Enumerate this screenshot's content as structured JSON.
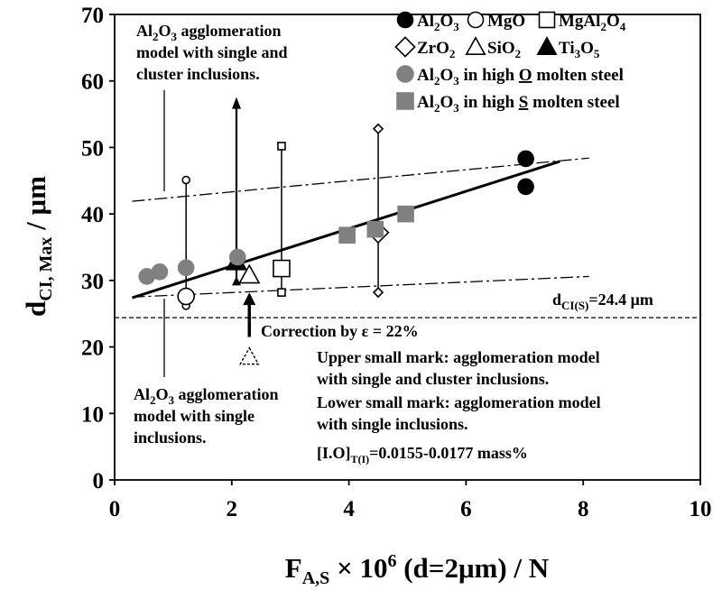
{
  "chart_data": {
    "type": "scatter",
    "xlim": [
      0,
      10
    ],
    "ylim": [
      0,
      70
    ],
    "xticks": [
      0,
      2,
      4,
      6,
      8,
      10
    ],
    "yticks": [
      0,
      10,
      20,
      30,
      40,
      50,
      60,
      70
    ],
    "xlabel": {
      "main": "F",
      "sub": "A,S",
      "mid": " × 10",
      "sup": "6",
      "end": " (d=2μm) / N"
    },
    "ylabel": {
      "main": "d",
      "sub": "CI, Max",
      "end": " / μm"
    },
    "grid": false,
    "legend_position": "top-right",
    "legend": [
      {
        "marker": "circle-filled",
        "parts": [
          [
            "Al",
            ""
          ],
          [
            "2",
            "sub"
          ],
          [
            "O",
            ""
          ],
          [
            "3",
            "sub"
          ]
        ]
      },
      {
        "marker": "circle-open",
        "parts": [
          [
            "MgO",
            ""
          ]
        ]
      },
      {
        "marker": "square-open",
        "parts": [
          [
            "MgAl",
            ""
          ],
          [
            "2",
            "sub"
          ],
          [
            "O",
            ""
          ],
          [
            "4",
            "sub"
          ]
        ]
      },
      {
        "marker": "diamond-open",
        "parts": [
          [
            "ZrO",
            ""
          ],
          [
            "2",
            "sub"
          ]
        ]
      },
      {
        "marker": "triangle-open",
        "parts": [
          [
            "SiO",
            ""
          ],
          [
            "2",
            "sub"
          ]
        ]
      },
      {
        "marker": "triangle-filled",
        "parts": [
          [
            "Ti",
            ""
          ],
          [
            "3",
            "sub"
          ],
          [
            "O",
            ""
          ],
          [
            "5",
            "sub"
          ]
        ]
      },
      {
        "marker": "circle-gray",
        "parts": [
          [
            "Al",
            ""
          ],
          [
            "2",
            "sub"
          ],
          [
            "O",
            ""
          ],
          [
            "3",
            "sub"
          ],
          [
            "  in high ",
            ""
          ],
          [
            "O",
            "u"
          ],
          [
            " molten steel",
            ""
          ]
        ]
      },
      {
        "marker": "square-gray",
        "parts": [
          [
            "Al",
            ""
          ],
          [
            "2",
            "sub"
          ],
          [
            "O",
            ""
          ],
          [
            "3",
            "sub"
          ],
          [
            "  in high ",
            ""
          ],
          [
            "S",
            "u"
          ],
          [
            " molten steel",
            ""
          ]
        ]
      }
    ],
    "series": [
      {
        "name": "Al2O3",
        "marker": "circle-filled",
        "points": [
          [
            7.02,
            48.3
          ],
          [
            7.02,
            44.1
          ]
        ]
      },
      {
        "name": "MgO",
        "marker": "circle-open",
        "points": [
          [
            1.22,
            27.6
          ]
        ],
        "range": [
          26.2,
          45.1
        ]
      },
      {
        "name": "MgAl2O4",
        "marker": "square-open",
        "points": [
          [
            2.85,
            31.8
          ]
        ],
        "range": [
          28.2,
          50.2
        ]
      },
      {
        "name": "ZrO2",
        "marker": "diamond-open",
        "points": [
          [
            4.5,
            37.2
          ]
        ],
        "range": [
          28.2,
          52.8
        ]
      },
      {
        "name": "SiO2",
        "marker": "triangle-open",
        "points": [
          [
            2.3,
            30.8
          ]
        ],
        "corrected_from": 18.5
      },
      {
        "name": "Ti3O5",
        "marker": "triangle-filled",
        "points": [
          [
            2.08,
            32.8
          ]
        ],
        "range": [
          29.8,
          57.3
        ]
      },
      {
        "name": "Al2O3 in high O molten steel",
        "marker": "circle-gray",
        "points": [
          [
            0.55,
            30.6
          ],
          [
            0.77,
            31.3
          ],
          [
            1.22,
            31.9
          ],
          [
            2.1,
            33.5
          ]
        ]
      },
      {
        "name": "Al2O3 in high S molten steel",
        "marker": "square-gray",
        "points": [
          [
            3.97,
            36.8
          ],
          [
            4.45,
            37.7
          ],
          [
            4.97,
            40.0
          ]
        ]
      }
    ],
    "fit_line": [
      [
        0.3,
        27.4
      ],
      [
        7.6,
        47.9
      ]
    ],
    "dashdot_upper": [
      [
        0.3,
        41.9
      ],
      [
        8.1,
        48.4
      ]
    ],
    "dashdot_lower": [
      [
        0.3,
        27.5
      ],
      [
        8.1,
        30.6
      ]
    ],
    "reference_y": 24.4,
    "annotations": {
      "upper_model": [
        "Al|2|O|3| agglomeration",
        "model with single and",
        "cluster inclusions."
      ],
      "lower_model": [
        "Al|2|O|3| agglomeration",
        "model with single",
        "inclusions."
      ],
      "dci_s_main": "d",
      "dci_s_sub": "CI(S)",
      "dci_s_end": "=24.4 μm",
      "correction": "Correction by ε = 22%",
      "notes": [
        "Upper small mark: agglomeration model",
        "with single and cluster inclusions.",
        "Lower small mark: agglomeration model",
        "with single inclusions."
      ],
      "io_main": "[I.O]",
      "io_sub": "T(I)",
      "io_end": "=0.0155-0.0177 mass%"
    }
  }
}
